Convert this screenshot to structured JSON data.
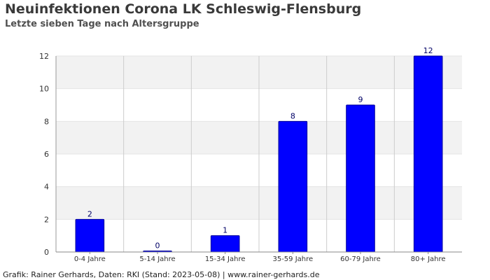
{
  "title": "Neuinfektionen Corona LK Schleswig-Flensburg",
  "subtitle": "Letzte sieben Tage nach Altersgruppe",
  "footer": "Grafik: Rainer Gerhards, Daten: RKI (Stand: 2023-05-08) | www.rainer-gerhards.de",
  "chart_data": {
    "type": "bar",
    "title": "Neuinfektionen Corona LK Schleswig-Flensburg",
    "subtitle": "Letzte sieben Tage nach Altersgruppe",
    "categories": [
      "0-4 Jahre",
      "5-14 Jahre",
      "15-34 Jahre",
      "35-59 Jahre",
      "60-79 Jahre",
      "80+ Jahre"
    ],
    "values": [
      2,
      0,
      1,
      8,
      9,
      12
    ],
    "data_labels": [
      "2",
      "0",
      "1",
      "8",
      "9",
      "12"
    ],
    "xlabel": "",
    "ylabel": "",
    "ylim": [
      0,
      12
    ],
    "yticks": [
      0,
      2,
      4,
      6,
      8,
      10,
      12
    ],
    "grid": true,
    "legend": "none",
    "colors": {
      "bar": "#0000ff",
      "bar_stroke": "#00009a",
      "band_alt": "#f2f2f2",
      "grid": "#cccccc",
      "label": "#000066"
    }
  }
}
